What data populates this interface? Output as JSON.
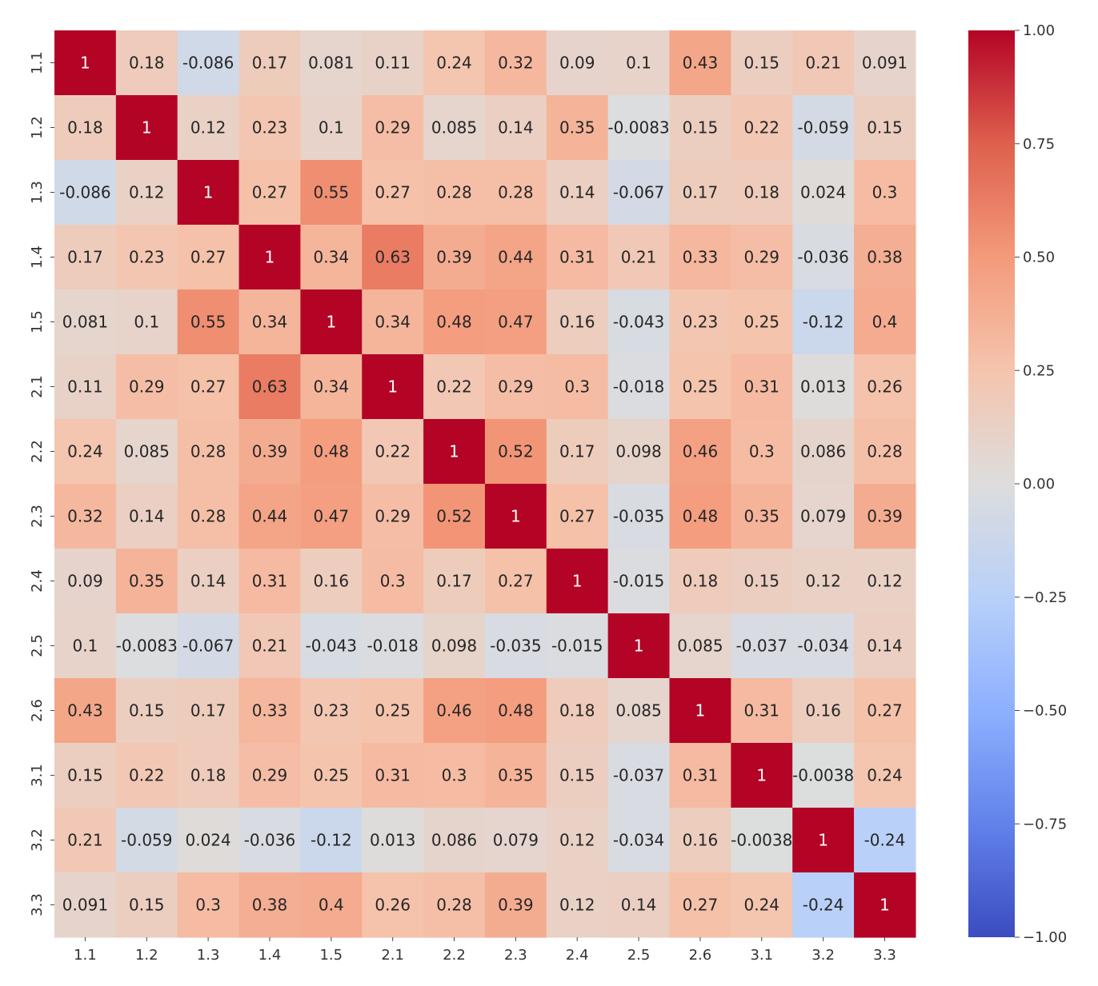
{
  "chart_data": {
    "type": "heatmap",
    "title": "",
    "xlabel": "",
    "ylabel": "",
    "x_categories": [
      "1.1",
      "1.2",
      "1.3",
      "1.4",
      "1.5",
      "2.1",
      "2.2",
      "2.3",
      "2.4",
      "2.5",
      "2.6",
      "3.1",
      "3.2",
      "3.3"
    ],
    "y_categories": [
      "1.1",
      "1.2",
      "1.3",
      "1.4",
      "1.5",
      "2.1",
      "2.2",
      "2.3",
      "2.4",
      "2.5",
      "2.6",
      "3.1",
      "3.2",
      "3.3"
    ],
    "matrix": [
      [
        "1",
        "0.18",
        "-0.086",
        "0.17",
        "0.081",
        "0.11",
        "0.24",
        "0.32",
        "0.09",
        "0.1",
        "0.43",
        "0.15",
        "0.21",
        "0.091"
      ],
      [
        "0.18",
        "1",
        "0.12",
        "0.23",
        "0.1",
        "0.29",
        "0.085",
        "0.14",
        "0.35",
        "-0.0083",
        "0.15",
        "0.22",
        "-0.059",
        "0.15"
      ],
      [
        "-0.086",
        "0.12",
        "1",
        "0.27",
        "0.55",
        "0.27",
        "0.28",
        "0.28",
        "0.14",
        "-0.067",
        "0.17",
        "0.18",
        "0.024",
        "0.3"
      ],
      [
        "0.17",
        "0.23",
        "0.27",
        "1",
        "0.34",
        "0.63",
        "0.39",
        "0.44",
        "0.31",
        "0.21",
        "0.33",
        "0.29",
        "-0.036",
        "0.38"
      ],
      [
        "0.081",
        "0.1",
        "0.55",
        "0.34",
        "1",
        "0.34",
        "0.48",
        "0.47",
        "0.16",
        "-0.043",
        "0.23",
        "0.25",
        "-0.12",
        "0.4"
      ],
      [
        "0.11",
        "0.29",
        "0.27",
        "0.63",
        "0.34",
        "1",
        "0.22",
        "0.29",
        "0.3",
        "-0.018",
        "0.25",
        "0.31",
        "0.013",
        "0.26"
      ],
      [
        "0.24",
        "0.085",
        "0.28",
        "0.39",
        "0.48",
        "0.22",
        "1",
        "0.52",
        "0.17",
        "0.098",
        "0.46",
        "0.3",
        "0.086",
        "0.28"
      ],
      [
        "0.32",
        "0.14",
        "0.28",
        "0.44",
        "0.47",
        "0.29",
        "0.52",
        "1",
        "0.27",
        "-0.035",
        "0.48",
        "0.35",
        "0.079",
        "0.39"
      ],
      [
        "0.09",
        "0.35",
        "0.14",
        "0.31",
        "0.16",
        "0.3",
        "0.17",
        "0.27",
        "1",
        "-0.015",
        "0.18",
        "0.15",
        "0.12",
        "0.12"
      ],
      [
        "0.1",
        "-0.0083",
        "-0.067",
        "0.21",
        "-0.043",
        "-0.018",
        "0.098",
        "-0.035",
        "-0.015",
        "1",
        "0.085",
        "-0.037",
        "-0.034",
        "0.14"
      ],
      [
        "0.43",
        "0.15",
        "0.17",
        "0.33",
        "0.23",
        "0.25",
        "0.46",
        "0.48",
        "0.18",
        "0.085",
        "1",
        "0.31",
        "0.16",
        "0.27"
      ],
      [
        "0.15",
        "0.22",
        "0.18",
        "0.29",
        "0.25",
        "0.31",
        "0.3",
        "0.35",
        "0.15",
        "-0.037",
        "0.31",
        "1",
        "-0.0038",
        "0.24"
      ],
      [
        "0.21",
        "-0.059",
        "0.024",
        "-0.036",
        "-0.12",
        "0.013",
        "0.086",
        "0.079",
        "0.12",
        "-0.034",
        "0.16",
        "-0.0038",
        "1",
        "-0.24"
      ],
      [
        "0.091",
        "0.15",
        "0.3",
        "0.38",
        "0.4",
        "0.26",
        "0.28",
        "0.39",
        "0.12",
        "0.14",
        "0.27",
        "0.24",
        "-0.24",
        "1"
      ]
    ],
    "colormap": "coolwarm",
    "vmin": -1.0,
    "vmax": 1.0,
    "annotated": true,
    "colorbar": {
      "position": "right",
      "ticks": [
        "1.00",
        "0.75",
        "0.50",
        "0.25",
        "0.00",
        "−0.25",
        "−0.50",
        "−0.75",
        "−1.00"
      ]
    },
    "grid": false
  }
}
